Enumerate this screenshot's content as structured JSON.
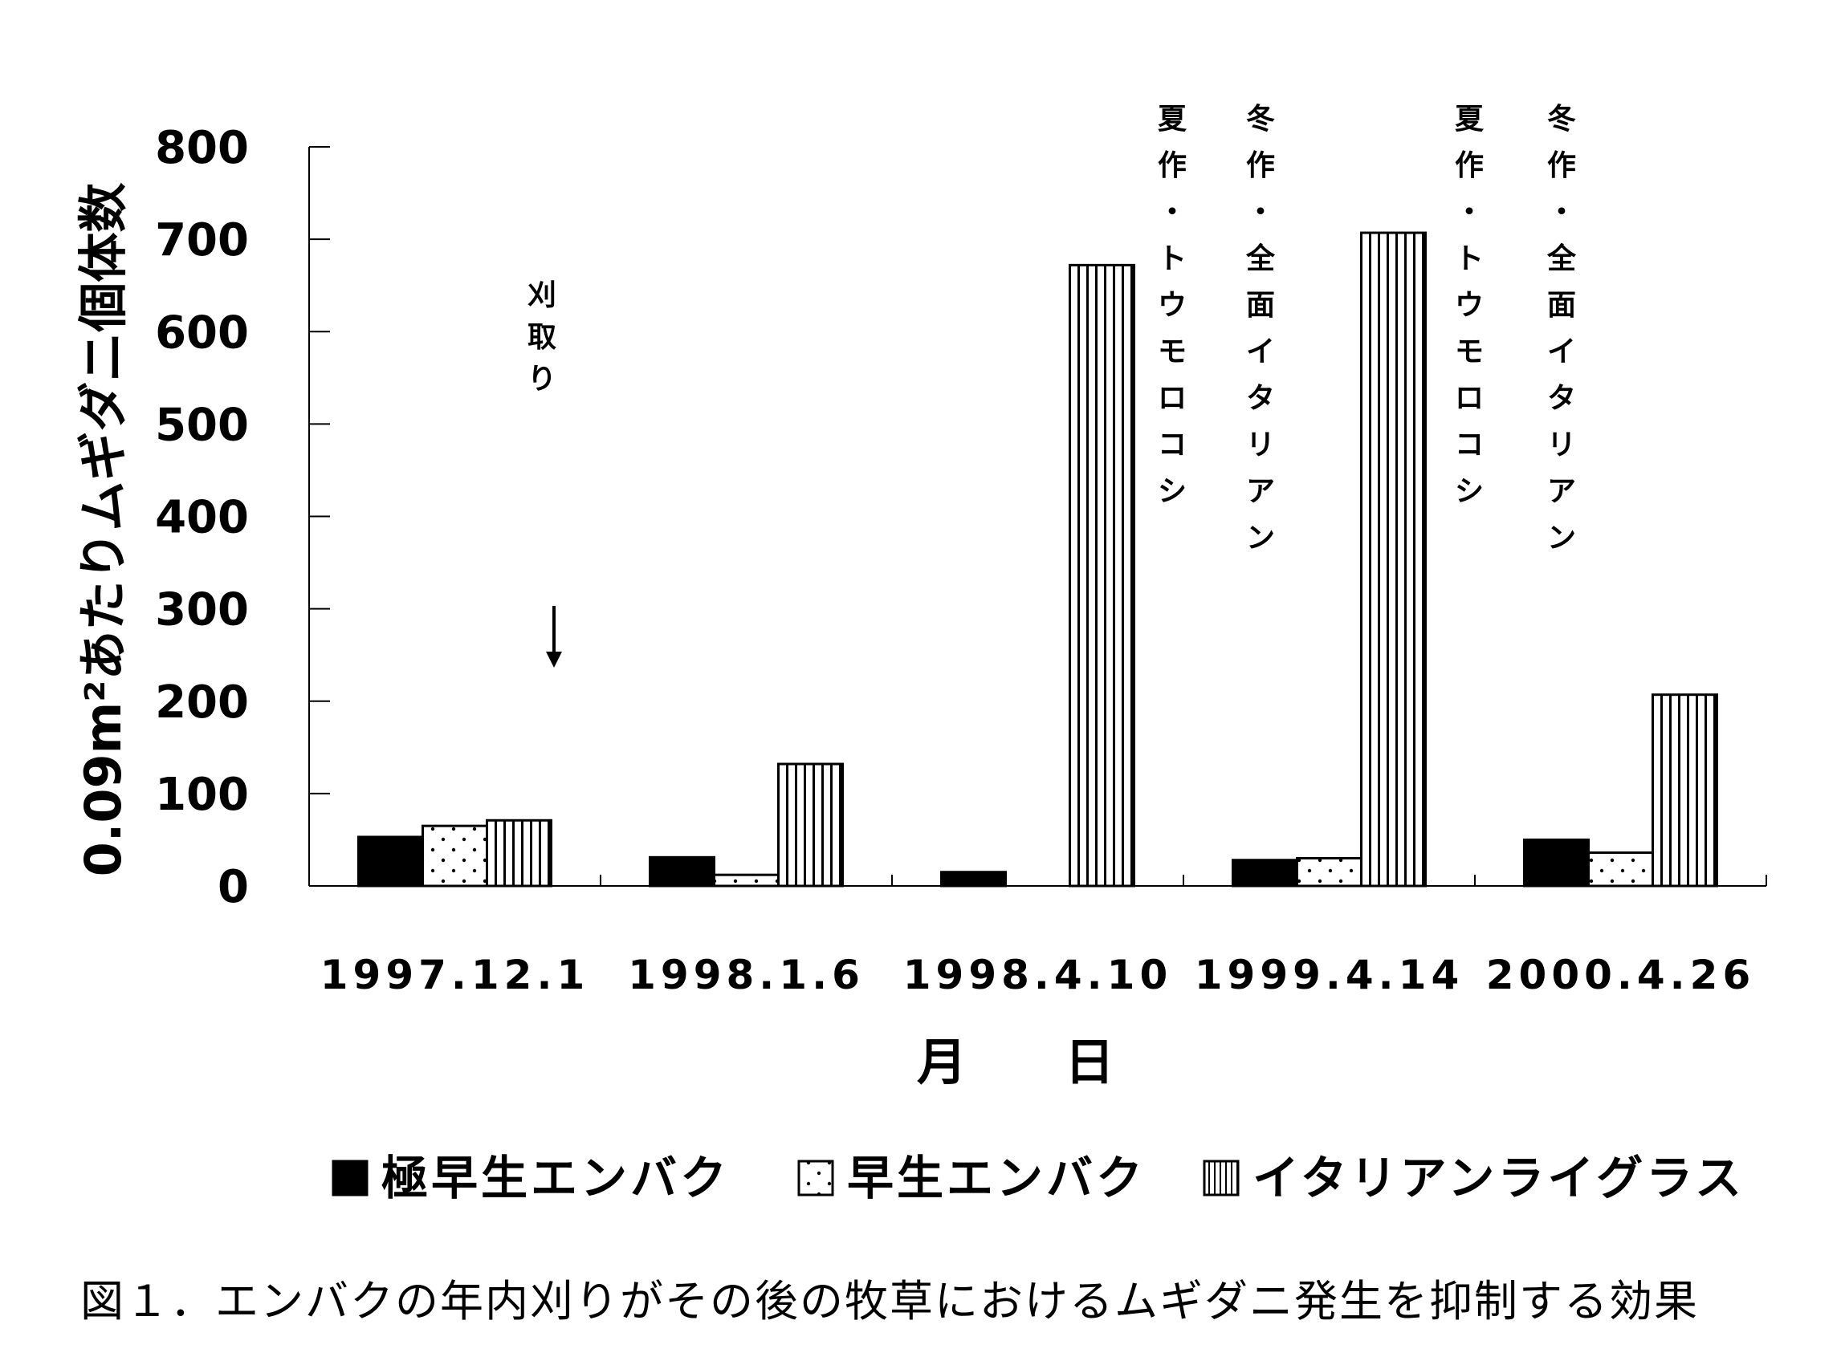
{
  "chart_data": {
    "type": "bar",
    "title": "",
    "xlabel": "月　日",
    "ylabel": "0.09m²あたりムギダニ個体数",
    "ylim": [
      0,
      800
    ],
    "yticks": [
      "0",
      "100",
      "200",
      "300",
      "400",
      "500",
      "600",
      "700",
      "800"
    ],
    "categories": [
      "1997.12.1",
      "1998.1.6",
      "1998.4.10",
      "1999.4.14",
      "2000.4.26"
    ],
    "series": [
      {
        "name": "極早生エンバク",
        "values": [
          53,
          31,
          15,
          28,
          50
        ],
        "pattern": "solid"
      },
      {
        "name": "早生エンバク",
        "values": [
          65,
          12,
          null,
          30,
          36
        ],
        "pattern": "dots"
      },
      {
        "name": "イタリアンライグラス",
        "values": [
          71,
          132,
          672,
          707,
          207
        ],
        "pattern": "vstripes"
      }
    ],
    "legend_position": "bottom",
    "grid": false,
    "annotations": [
      {
        "text": "刈取り",
        "category": "1997.12.1",
        "arrow": true
      },
      {
        "text": "夏作・トウモロコシ",
        "category": "1998.4.10"
      },
      {
        "text": "冬作・全面イタリアン",
        "category": "1998.4.10"
      },
      {
        "text": "夏作・トウモロコシ",
        "category": "1999.4.14"
      },
      {
        "text": "冬作・全面イタリアン",
        "category": "1999.4.14"
      }
    ]
  },
  "caption": "図１．エンバクの年内刈りがその後の牧草におけるムギダニ発生を抑制する効果"
}
